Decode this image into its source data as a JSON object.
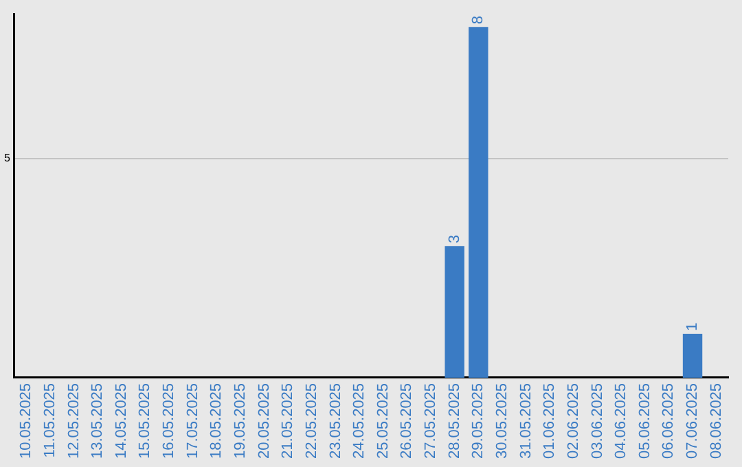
{
  "chart_data": {
    "type": "bar",
    "categories": [
      "10.05.2025",
      "11.05.2025",
      "12.05.2025",
      "13.05.2025",
      "14.05.2025",
      "15.05.2025",
      "16.05.2025",
      "17.05.2025",
      "18.05.2025",
      "19.05.2025",
      "20.05.2025",
      "21.05.2025",
      "22.05.2025",
      "23.05.2025",
      "24.05.2025",
      "25.05.2025",
      "26.05.2025",
      "27.05.2025",
      "28.05.2025",
      "29.05.2025",
      "30.05.2025",
      "31.05.2025",
      "01.06.2025",
      "02.06.2025",
      "03.06.2025",
      "04.06.2025",
      "05.06.2025",
      "06.06.2025",
      "07.06.2025",
      "08.06.2025"
    ],
    "values": [
      null,
      null,
      null,
      null,
      null,
      null,
      null,
      null,
      null,
      null,
      null,
      null,
      null,
      null,
      null,
      null,
      null,
      null,
      3,
      8,
      null,
      null,
      null,
      null,
      null,
      null,
      null,
      null,
      1,
      null
    ],
    "data_labels": true,
    "color": "#3a7bc4",
    "ylim": [
      0,
      8.3
    ],
    "yticks": [
      5
    ],
    "grid": "y",
    "legend": false
  }
}
